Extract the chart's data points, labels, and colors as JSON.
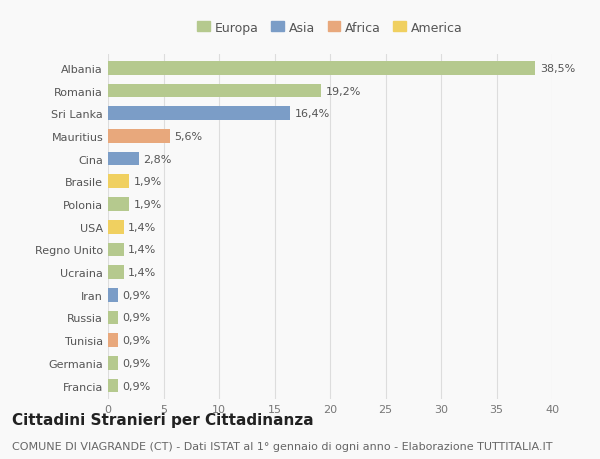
{
  "categories": [
    "Albania",
    "Romania",
    "Sri Lanka",
    "Mauritius",
    "Cina",
    "Brasile",
    "Polonia",
    "USA",
    "Regno Unito",
    "Ucraina",
    "Iran",
    "Russia",
    "Tunisia",
    "Germania",
    "Francia"
  ],
  "values": [
    38.5,
    19.2,
    16.4,
    5.6,
    2.8,
    1.9,
    1.9,
    1.4,
    1.4,
    1.4,
    0.9,
    0.9,
    0.9,
    0.9,
    0.9
  ],
  "labels": [
    "38,5%",
    "19,2%",
    "16,4%",
    "5,6%",
    "2,8%",
    "1,9%",
    "1,9%",
    "1,4%",
    "1,4%",
    "1,4%",
    "0,9%",
    "0,9%",
    "0,9%",
    "0,9%",
    "0,9%"
  ],
  "continents": [
    "Europa",
    "Europa",
    "Asia",
    "Africa",
    "Asia",
    "America",
    "Europa",
    "America",
    "Europa",
    "Europa",
    "Asia",
    "Europa",
    "Africa",
    "Europa",
    "Europa"
  ],
  "continent_colors": {
    "Europa": "#b5c98e",
    "Asia": "#7b9dc7",
    "Africa": "#e8a87c",
    "America": "#f0d060"
  },
  "legend_order": [
    "Europa",
    "Asia",
    "Africa",
    "America"
  ],
  "xlim": [
    0,
    40
  ],
  "xticks": [
    0,
    5,
    10,
    15,
    20,
    25,
    30,
    35,
    40
  ],
  "title": "Cittadini Stranieri per Cittadinanza",
  "subtitle": "COMUNE DI VIAGRANDE (CT) - Dati ISTAT al 1° gennaio di ogni anno - Elaborazione TUTTITALIA.IT",
  "background_color": "#f9f9f9",
  "grid_color": "#dddddd",
  "bar_height": 0.6,
  "title_fontsize": 11,
  "subtitle_fontsize": 8,
  "tick_fontsize": 8,
  "label_fontsize": 8
}
